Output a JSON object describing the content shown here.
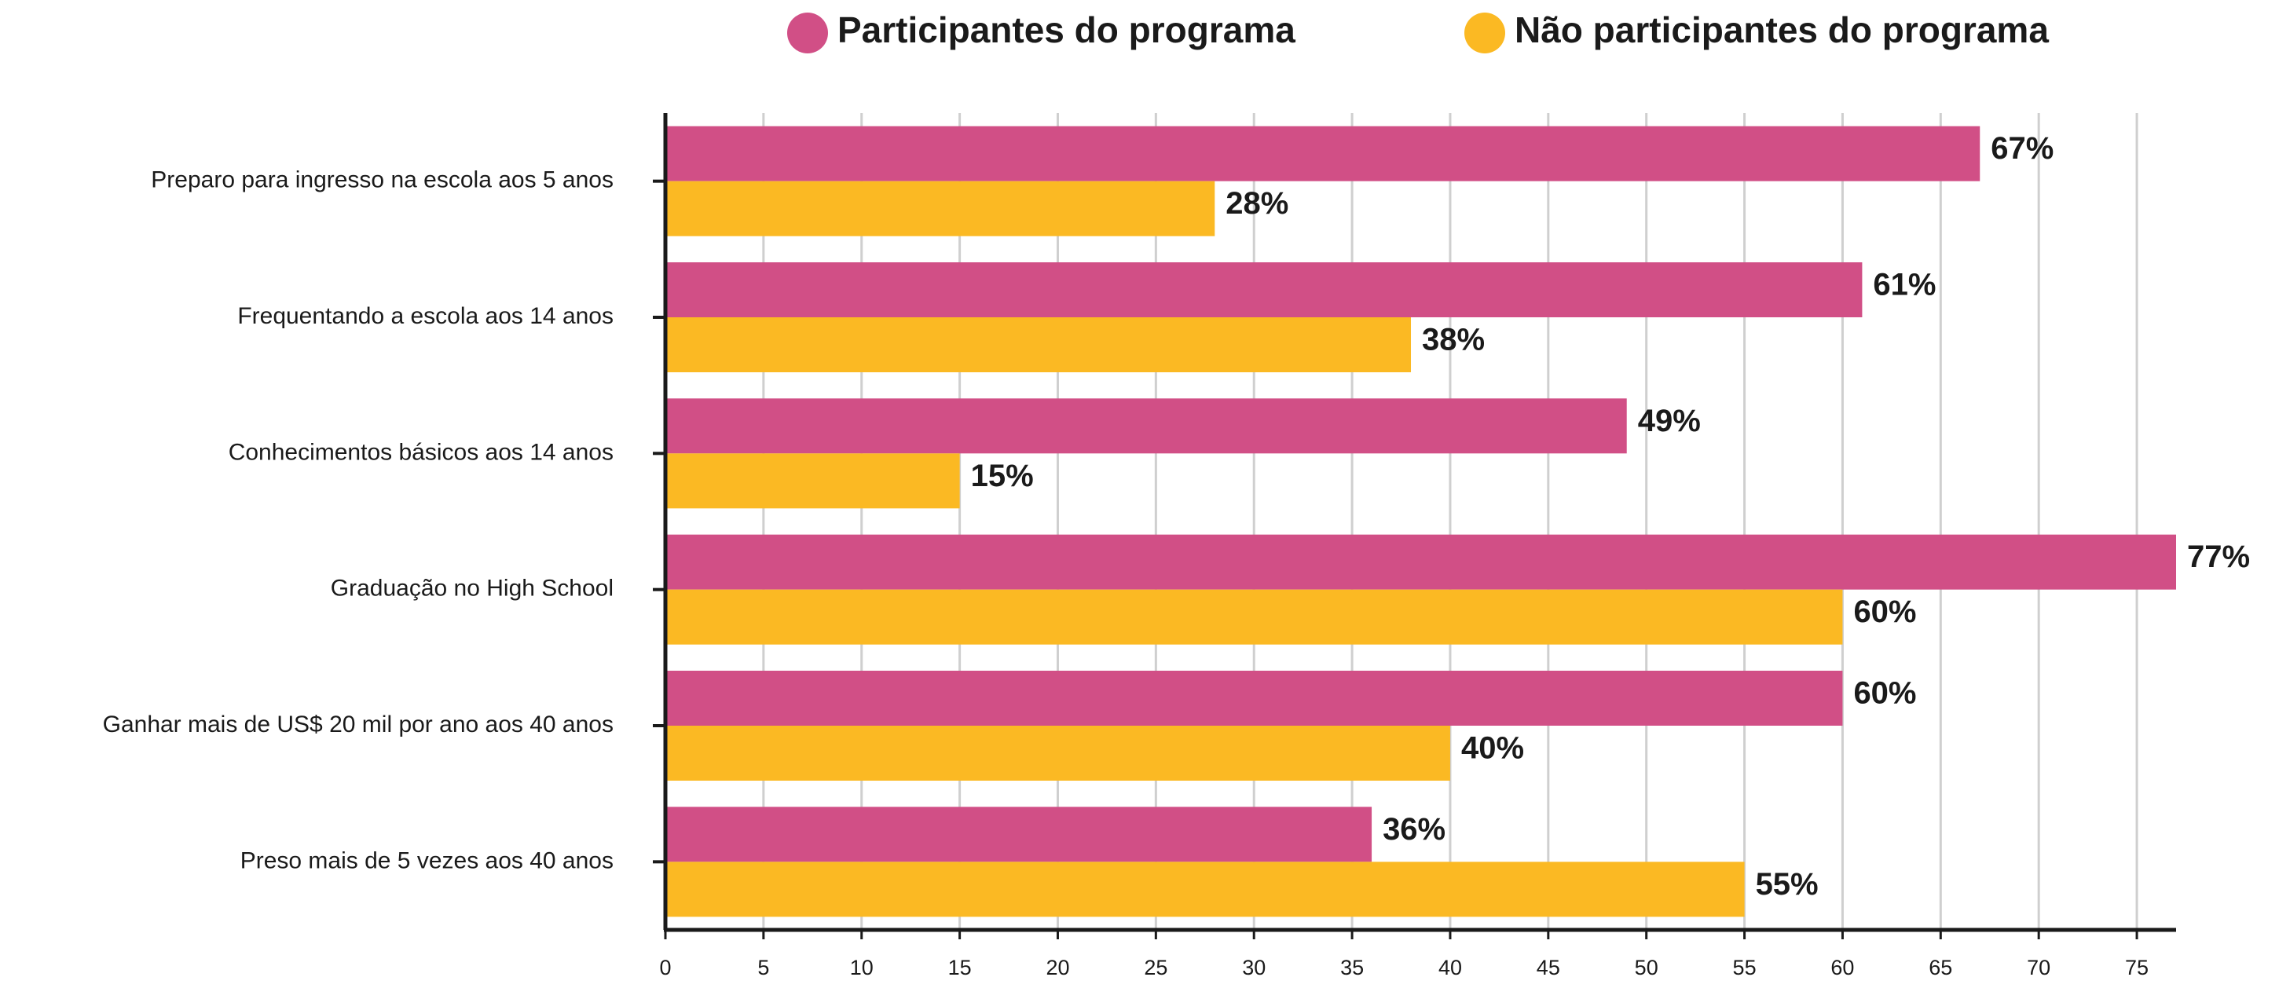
{
  "chart_data": {
    "type": "bar",
    "orientation": "horizontal",
    "categories": [
      "Preparo para ingresso na escola aos 5 anos",
      "Frequentando a escola aos 14 anos",
      "Conhecimentos básicos aos 14 anos",
      "Graduação no High School",
      "Ganhar mais de US$ 20 mil por ano aos 40 anos",
      "Preso mais de 5 vezes aos 40 anos"
    ],
    "series": [
      {
        "name": "Participantes do programa",
        "color": "#d14f86",
        "values": [
          67,
          61,
          49,
          77,
          60,
          36
        ],
        "value_labels": [
          "67%",
          "61%",
          "49%",
          "77%",
          "60%",
          "36%"
        ]
      },
      {
        "name": "Não participantes do programa",
        "color": "#fbb923",
        "values": [
          28,
          38,
          15,
          60,
          40,
          55
        ],
        "value_labels": [
          "28%",
          "38%",
          "15%",
          "60%",
          "40%",
          "55%"
        ]
      }
    ],
    "xlim": [
      0,
      77
    ],
    "xticks": [
      0,
      5,
      10,
      15,
      20,
      25,
      30,
      35,
      40,
      45,
      50,
      55,
      60,
      65,
      70,
      75
    ],
    "grid": true,
    "legend": "top"
  }
}
